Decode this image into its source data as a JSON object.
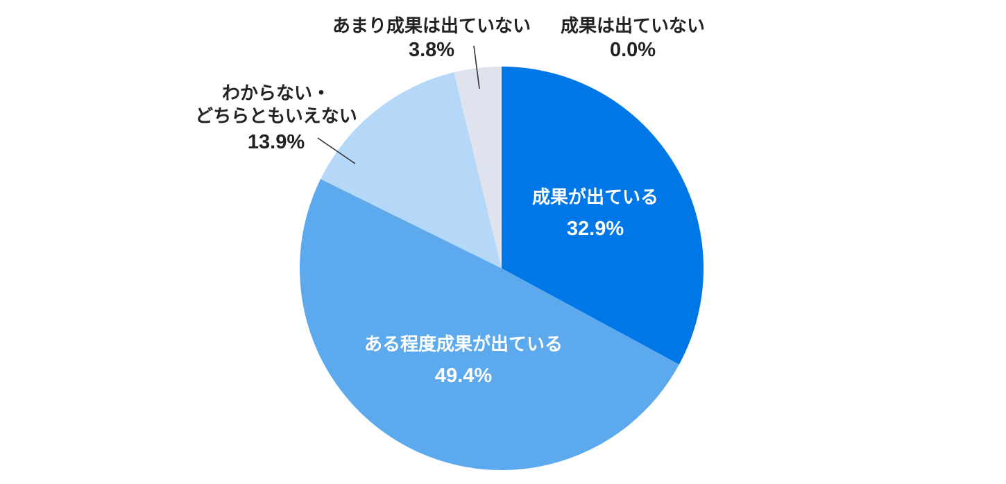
{
  "chart_data": {
    "type": "pie",
    "title": "",
    "start_angle": "12 o'clock",
    "direction": "clockwise",
    "legend": "none",
    "slices": [
      {
        "name": "成果が出ている",
        "name_lines": [
          "成果が出ている"
        ],
        "value": 32.9,
        "value_label": "32.9%",
        "color": "#0077E6",
        "text_color": "#FFFFFF"
      },
      {
        "name": "ある程度成果が出ている",
        "name_lines": [
          "ある程度成果が出ている"
        ],
        "value": 49.4,
        "value_label": "49.4%",
        "color": "#5CA9EE",
        "text_color": "#FFFFFF"
      },
      {
        "name": "わからない・どちらともいえない",
        "name_lines": [
          "わからない・",
          "どちらともいえない"
        ],
        "value": 13.9,
        "value_label": "13.9%",
        "color": "#B5D7F8",
        "text_color": "#222222"
      },
      {
        "name": "あまり成果は出ていない",
        "name_lines": [
          "あまり成果は出ていない"
        ],
        "value": 3.8,
        "value_label": "3.8%",
        "color": "#DFE3EE",
        "text_color": "#222222"
      },
      {
        "name": "成果は出ていない",
        "name_lines": [
          "成果は出ていない"
        ],
        "value": 0.0,
        "value_label": "0.0%",
        "color": "#C9CFDC",
        "text_color": "#222222"
      }
    ]
  }
}
